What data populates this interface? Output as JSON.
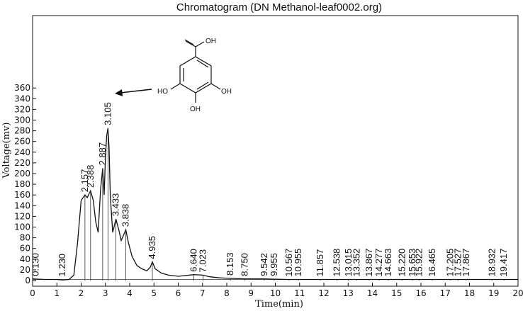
{
  "chart_data": {
    "type": "line",
    "title": "Chromatogram (DN Methanol-leaf0002.org)",
    "xlabel": "Time(min)",
    "ylabel": "Voltage(mv)",
    "xlim": [
      0,
      20
    ],
    "ylim": [
      -5,
      365
    ],
    "xticks": [
      "0",
      "1",
      "2",
      "3",
      "4",
      "5",
      "6",
      "7",
      "8",
      "9",
      "10",
      "11",
      "12",
      "13",
      "14",
      "15",
      "16",
      "17",
      "18",
      "19",
      "20"
    ],
    "yticks": [
      "0",
      "20",
      "40",
      "60",
      "80",
      "100",
      "120",
      "140",
      "160",
      "180",
      "200",
      "220",
      "240",
      "260",
      "280",
      "300",
      "320",
      "340",
      "360"
    ],
    "grid": false,
    "series": [
      {
        "x": [
          0,
          0.5,
          1.0,
          1.23,
          1.5,
          1.7,
          1.85,
          2.0,
          2.157,
          2.25,
          2.388,
          2.5,
          2.6,
          2.7,
          2.8,
          2.887,
          2.95,
          3.0,
          3.05,
          3.105,
          3.15,
          3.2,
          3.3,
          3.433,
          3.55,
          3.65,
          3.75,
          3.838,
          3.95,
          4.1,
          4.3,
          4.5,
          4.7,
          4.85,
          4.935,
          5.05,
          5.3,
          5.6,
          6.0,
          6.64,
          7.023,
          7.3,
          7.7,
          8.153,
          8.75,
          9.5,
          10.5,
          11.5,
          12.5,
          13.5,
          14.5,
          15.5,
          16.5,
          17.5,
          18.5,
          19.5,
          20.0
        ],
        "values": [
          3,
          2,
          2,
          1,
          2,
          10,
          70,
          150,
          160,
          155,
          168,
          150,
          110,
          90,
          170,
          210,
          160,
          230,
          270,
          285,
          250,
          160,
          90,
          115,
          95,
          75,
          85,
          95,
          70,
          45,
          28,
          22,
          18,
          25,
          35,
          22,
          14,
          10,
          8,
          11,
          10,
          7,
          5,
          4,
          3,
          3,
          2,
          2,
          2,
          2,
          2,
          2,
          2,
          2,
          2,
          2,
          2
        ]
      }
    ],
    "peaks": [
      {
        "label": "0.130",
        "x": 0.13,
        "y": 3
      },
      {
        "label": "1.230",
        "x": 1.23,
        "y": 2
      },
      {
        "label": "2.157",
        "x": 2.157,
        "y": 160
      },
      {
        "label": "2.388",
        "x": 2.388,
        "y": 168
      },
      {
        "label": "2.887",
        "x": 2.887,
        "y": 210
      },
      {
        "label": "3.105",
        "x": 3.105,
        "y": 285
      },
      {
        "label": "3.433",
        "x": 3.433,
        "y": 115
      },
      {
        "label": "3.838",
        "x": 3.838,
        "y": 95
      },
      {
        "label": "4.935",
        "x": 4.935,
        "y": 35
      },
      {
        "label": "6.640",
        "x": 6.64,
        "y": 11
      },
      {
        "label": "7.023",
        "x": 7.023,
        "y": 10
      },
      {
        "label": "8.153",
        "x": 8.153,
        "y": 4
      },
      {
        "label": "8.750",
        "x": 8.75,
        "y": 3
      },
      {
        "label": "9.542",
        "x": 9.542,
        "y": 3
      },
      {
        "label": "9.955",
        "x": 9.955,
        "y": 3
      },
      {
        "label": "10.567",
        "x": 10.567,
        "y": 2
      },
      {
        "label": "10.955",
        "x": 10.955,
        "y": 2
      },
      {
        "label": "11.857",
        "x": 11.857,
        "y": 2
      },
      {
        "label": "12.538",
        "x": 12.538,
        "y": 2
      },
      {
        "label": "13.015",
        "x": 13.015,
        "y": 2
      },
      {
        "label": "13.352",
        "x": 13.352,
        "y": 2
      },
      {
        "label": "13.867",
        "x": 13.867,
        "y": 2
      },
      {
        "label": "14.277",
        "x": 14.277,
        "y": 2
      },
      {
        "label": "14.663",
        "x": 14.663,
        "y": 2
      },
      {
        "label": "15.220",
        "x": 15.22,
        "y": 2
      },
      {
        "label": "15.653",
        "x": 15.653,
        "y": 2
      },
      {
        "label": "15.922",
        "x": 15.922,
        "y": 2
      },
      {
        "label": "16.465",
        "x": 16.465,
        "y": 2
      },
      {
        "label": "17.205",
        "x": 17.205,
        "y": 2
      },
      {
        "label": "17.527",
        "x": 17.527,
        "y": 2
      },
      {
        "label": "17.867",
        "x": 17.867,
        "y": 2
      },
      {
        "label": "18.932",
        "x": 18.932,
        "y": 2
      },
      {
        "label": "19.417",
        "x": 19.417,
        "y": 2
      }
    ],
    "annotation": {
      "arrow_target_peak": "3.105",
      "molecule_labels": {
        "top": "OH",
        "left": "HO",
        "right": "OH",
        "bottom": "OH"
      }
    }
  }
}
